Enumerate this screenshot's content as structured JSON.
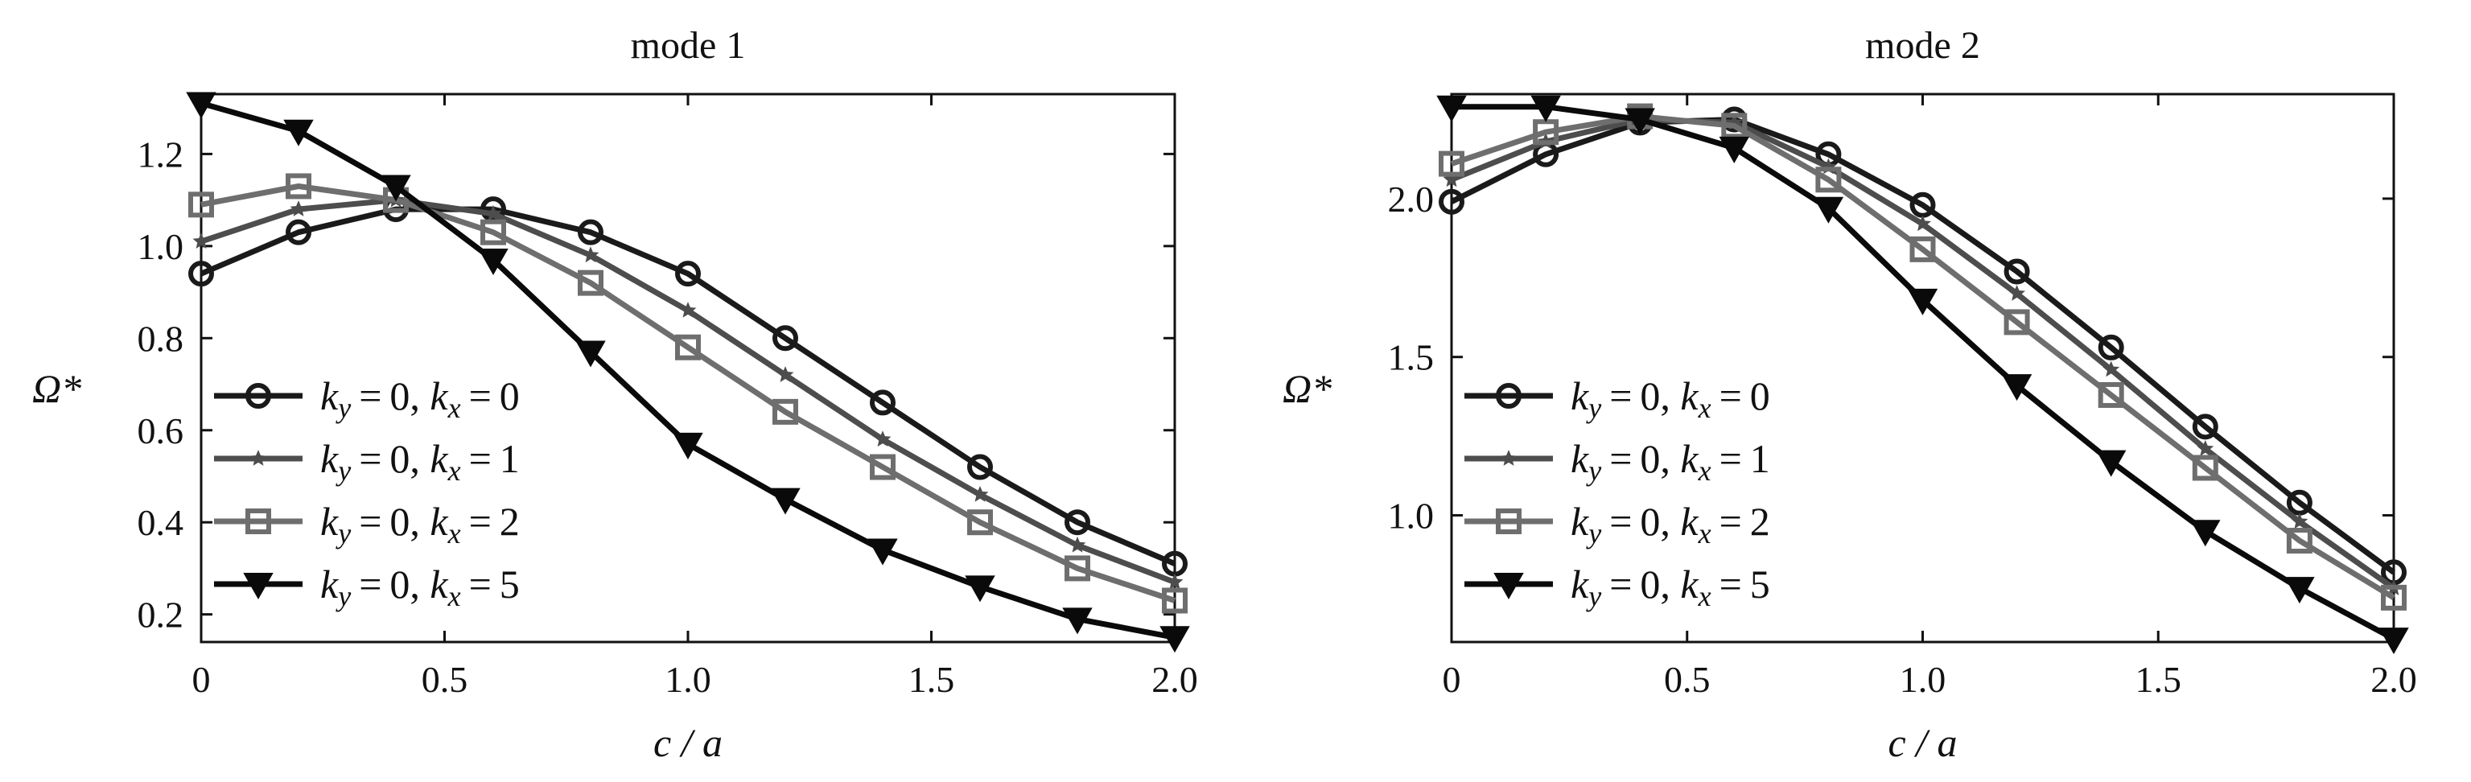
{
  "chart_data": [
    {
      "type": "line",
      "title": "mode 1",
      "xlabel": "c / a",
      "ylabel": "Ω*",
      "xlim": [
        0,
        2.0
      ],
      "ylim": [
        0.14,
        1.33
      ],
      "xticks": [
        "0",
        "0.5",
        "1.0",
        "1.5",
        "2.0"
      ],
      "yticks": [
        "0.2",
        "0.4",
        "0.6",
        "0.8",
        "1.0",
        "1.2"
      ],
      "legend_position": "bottom-left",
      "x": [
        0,
        0.2,
        0.4,
        0.6,
        0.8,
        1.0,
        1.2,
        1.4,
        1.6,
        1.8,
        2.0
      ],
      "series": [
        {
          "name": "ky=0, kx=0",
          "marker": "circle",
          "color": "#1a1a1a",
          "values": [
            0.94,
            1.03,
            1.08,
            1.08,
            1.03,
            0.94,
            0.8,
            0.66,
            0.52,
            0.4,
            0.31
          ]
        },
        {
          "name": "ky=0, kx=1",
          "marker": "star",
          "color": "#4d4d4d",
          "values": [
            1.01,
            1.08,
            1.1,
            1.07,
            0.98,
            0.86,
            0.72,
            0.58,
            0.46,
            0.35,
            0.27
          ]
        },
        {
          "name": "ky=0, kx=2",
          "marker": "square",
          "color": "#6e6e6e",
          "values": [
            1.09,
            1.13,
            1.1,
            1.03,
            0.92,
            0.78,
            0.64,
            0.52,
            0.4,
            0.3,
            0.23
          ]
        },
        {
          "name": "ky=0, kx=5",
          "marker": "triangle-down",
          "color": "#0a0a0a",
          "values": [
            1.31,
            1.25,
            1.13,
            0.97,
            0.77,
            0.57,
            0.45,
            0.34,
            0.26,
            0.19,
            0.15
          ]
        }
      ]
    },
    {
      "type": "line",
      "title": "mode 2",
      "xlabel": "c / a",
      "ylabel": "Ω*",
      "xlim": [
        0,
        2.0
      ],
      "ylim": [
        0.6,
        2.33
      ],
      "xticks": [
        "0",
        "0.5",
        "1.0",
        "1.5",
        "2.0"
      ],
      "yticks": [
        "1.0",
        "1.5",
        "2.0"
      ],
      "legend_position": "bottom-left",
      "x": [
        0,
        0.2,
        0.4,
        0.6,
        0.8,
        1.0,
        1.2,
        1.4,
        1.6,
        1.8,
        2.0
      ],
      "series": [
        {
          "name": "ky=0, kx=0",
          "marker": "circle",
          "color": "#1a1a1a",
          "values": [
            1.99,
            2.14,
            2.24,
            2.25,
            2.14,
            1.98,
            1.77,
            1.53,
            1.28,
            1.04,
            0.82
          ]
        },
        {
          "name": "ky=0, kx=1",
          "marker": "star",
          "color": "#4d4d4d",
          "values": [
            2.06,
            2.18,
            2.25,
            2.24,
            2.1,
            1.92,
            1.7,
            1.46,
            1.21,
            0.98,
            0.77
          ]
        },
        {
          "name": "ky=0, kx=2",
          "marker": "square",
          "color": "#6e6e6e",
          "values": [
            2.11,
            2.21,
            2.26,
            2.23,
            2.06,
            1.84,
            1.61,
            1.38,
            1.15,
            0.92,
            0.74
          ]
        },
        {
          "name": "ky=0, kx=5",
          "marker": "triangle-down",
          "color": "#0a0a0a",
          "values": [
            2.29,
            2.29,
            2.25,
            2.16,
            1.97,
            1.68,
            1.41,
            1.17,
            0.95,
            0.77,
            0.61
          ]
        }
      ]
    }
  ]
}
